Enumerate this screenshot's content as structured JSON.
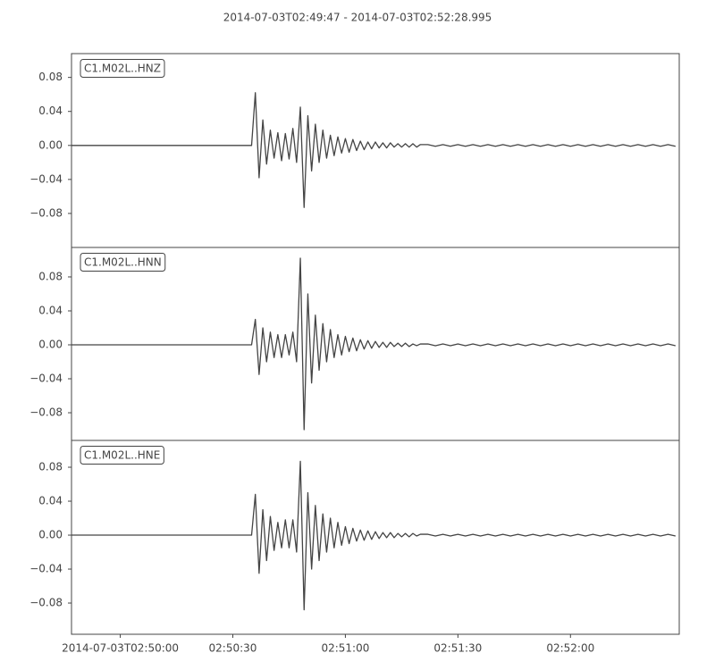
{
  "title": "2014-07-03T02:49:47  -  2014-07-03T02:52:28.995",
  "chart_data": [
    {
      "type": "line",
      "label": "C1.M02L..HNZ",
      "color": "#444444",
      "xlim": [
        "02:49:47",
        "02:52:28.995"
      ],
      "ylim": [
        -0.12,
        0.108
      ],
      "yticks": [
        {
          "value": -0.08,
          "label": "−0.08"
        },
        {
          "value": -0.04,
          "label": "−0.04"
        },
        {
          "value": 0,
          "label": "0.00"
        },
        0.04,
        0.08
      ],
      "x": [
        "02:49:47",
        "02:50:35",
        "02:50:36",
        "02:50:37",
        "02:50:38",
        "02:50:39",
        "02:50:40",
        "02:50:41",
        "02:50:42",
        "02:50:43",
        "02:50:44",
        "02:50:45",
        "02:50:46",
        "02:50:47",
        "02:50:48",
        "02:50:49",
        "02:50:50",
        "02:50:51",
        "02:50:52",
        "02:50:53",
        "02:50:54",
        "02:50:55",
        "02:50:56",
        "02:50:57",
        "02:50:58",
        "02:50:59",
        "02:51:00",
        "02:51:01",
        "02:51:02",
        "02:51:03",
        "02:51:04",
        "02:51:05",
        "02:51:06",
        "02:51:07",
        "02:51:08",
        "02:51:09",
        "02:51:10",
        "02:51:11",
        "02:51:12",
        "02:51:13",
        "02:51:14",
        "02:51:15",
        "02:51:16",
        "02:51:17",
        "02:51:18",
        "02:51:19",
        "02:51:20",
        "02:51:22",
        "02:51:24",
        "02:51:26",
        "02:51:28",
        "02:51:30",
        "02:51:32",
        "02:51:34",
        "02:51:36",
        "02:51:38",
        "02:51:40",
        "02:51:42",
        "02:51:44",
        "02:51:46",
        "02:51:48",
        "02:51:50",
        "02:51:52",
        "02:51:54",
        "02:51:56",
        "02:51:58",
        "02:52:00",
        "02:52:02",
        "02:52:04",
        "02:52:06",
        "02:52:08",
        "02:52:10",
        "02:52:12",
        "02:52:14",
        "02:52:16",
        "02:52:18",
        "02:52:20",
        "02:52:22",
        "02:52:24",
        "02:52:26",
        "02:52:28"
      ],
      "values": [
        0,
        0,
        0.062,
        -0.038,
        0.03,
        -0.022,
        0.018,
        -0.015,
        0.015,
        -0.018,
        0.014,
        -0.016,
        0.02,
        -0.02,
        0.045,
        -0.073,
        0.035,
        -0.03,
        0.025,
        -0.02,
        0.018,
        -0.015,
        0.012,
        -0.012,
        0.01,
        -0.009,
        0.008,
        -0.008,
        0.007,
        -0.006,
        0.005,
        -0.005,
        0.004,
        -0.004,
        0.004,
        -0.003,
        0.003,
        -0.003,
        0.003,
        -0.002,
        0.002,
        -0.002,
        0.002,
        -0.002,
        0.002,
        -0.002,
        0.001,
        0.001,
        -0.001,
        0.001,
        -0.001,
        0.001,
        -0.001,
        0.001,
        -0.001,
        0.001,
        -0.001,
        0.001,
        -0.001,
        0.001,
        -0.001,
        0.001,
        -0.001,
        0.001,
        -0.001,
        0.001,
        -0.001,
        0.001,
        -0.001,
        0.001,
        -0.001,
        0.001,
        -0.001,
        0.001,
        -0.001,
        0.001,
        -0.001,
        0.001,
        -0.001,
        0.001,
        -0.001
      ]
    },
    {
      "type": "line",
      "label": "C1.M02L..HNN",
      "color": "#444444",
      "xlim": [
        "02:49:47",
        "02:52:28.995"
      ],
      "ylim": [
        -0.1126,
        0.1147
      ],
      "yticks": [
        {
          "value": -0.08,
          "label": "−0.08"
        },
        {
          "value": -0.04,
          "label": "−0.04"
        },
        {
          "value": 0,
          "label": "0.00"
        },
        0.04,
        0.08
      ],
      "x": [
        "02:49:47",
        "02:50:35",
        "02:50:36",
        "02:50:37",
        "02:50:38",
        "02:50:39",
        "02:50:40",
        "02:50:41",
        "02:50:42",
        "02:50:43",
        "02:50:44",
        "02:50:45",
        "02:50:46",
        "02:50:47",
        "02:50:48",
        "02:50:49",
        "02:50:50",
        "02:50:51",
        "02:50:52",
        "02:50:53",
        "02:50:54",
        "02:50:55",
        "02:50:56",
        "02:50:57",
        "02:50:58",
        "02:50:59",
        "02:51:00",
        "02:51:01",
        "02:51:02",
        "02:51:03",
        "02:51:04",
        "02:51:05",
        "02:51:06",
        "02:51:07",
        "02:51:08",
        "02:51:09",
        "02:51:10",
        "02:51:11",
        "02:51:12",
        "02:51:13",
        "02:51:14",
        "02:51:15",
        "02:51:16",
        "02:51:17",
        "02:51:18",
        "02:51:19",
        "02:51:20",
        "02:51:22",
        "02:51:24",
        "02:51:26",
        "02:51:28",
        "02:51:30",
        "02:51:32",
        "02:51:34",
        "02:51:36",
        "02:51:38",
        "02:51:40",
        "02:51:42",
        "02:51:44",
        "02:51:46",
        "02:51:48",
        "02:51:50",
        "02:51:52",
        "02:51:54",
        "02:51:56",
        "02:51:58",
        "02:52:00",
        "02:52:02",
        "02:52:04",
        "02:52:06",
        "02:52:08",
        "02:52:10",
        "02:52:12",
        "02:52:14",
        "02:52:16",
        "02:52:18",
        "02:52:20",
        "02:52:22",
        "02:52:24",
        "02:52:26",
        "02:52:28"
      ],
      "values": [
        0,
        0,
        0.03,
        -0.035,
        0.02,
        -0.02,
        0.015,
        -0.015,
        0.012,
        -0.015,
        0.012,
        -0.012,
        0.015,
        -0.02,
        0.102,
        -0.1,
        0.06,
        -0.045,
        0.035,
        -0.03,
        0.025,
        -0.02,
        0.018,
        -0.015,
        0.012,
        -0.012,
        0.01,
        -0.008,
        0.008,
        -0.007,
        0.006,
        -0.005,
        0.005,
        -0.004,
        0.004,
        -0.003,
        0.003,
        -0.003,
        0.003,
        -0.002,
        0.002,
        -0.002,
        0.002,
        -0.002,
        0.001,
        -0.001,
        0.001,
        0.001,
        -0.001,
        0.001,
        -0.001,
        0.001,
        -0.001,
        0.001,
        -0.001,
        0.001,
        -0.001,
        0.001,
        -0.001,
        0.001,
        -0.001,
        0.001,
        -0.001,
        0.001,
        -0.001,
        0.001,
        -0.001,
        0.001,
        -0.001,
        0.001,
        -0.001,
        0.001,
        -0.001,
        0.001,
        -0.001,
        0.001,
        -0.001,
        0.001,
        -0.001,
        0.001,
        -0.001
      ]
    },
    {
      "type": "line",
      "label": "C1.M02L..HNE",
      "color": "#444444",
      "xlim": [
        "02:49:47",
        "02:52:28.995"
      ],
      "ylim": [
        -0.1168,
        0.1116
      ],
      "yticks": [
        {
          "value": -0.08,
          "label": "−0.08"
        },
        {
          "value": -0.04,
          "label": "−0.04"
        },
        {
          "value": 0,
          "label": "0.00"
        },
        0.04,
        0.08
      ],
      "xticks": [
        {
          "value": "02:50:00",
          "label": "2014-07-03T02:50:00"
        },
        "02:50:30",
        "02:51:00",
        "02:51:30",
        "02:52:00"
      ],
      "x": [
        "02:49:47",
        "02:50:35",
        "02:50:36",
        "02:50:37",
        "02:50:38",
        "02:50:39",
        "02:50:40",
        "02:50:41",
        "02:50:42",
        "02:50:43",
        "02:50:44",
        "02:50:45",
        "02:50:46",
        "02:50:47",
        "02:50:48",
        "02:50:49",
        "02:50:50",
        "02:50:51",
        "02:50:52",
        "02:50:53",
        "02:50:54",
        "02:50:55",
        "02:50:56",
        "02:50:57",
        "02:50:58",
        "02:50:59",
        "02:51:00",
        "02:51:01",
        "02:51:02",
        "02:51:03",
        "02:51:04",
        "02:51:05",
        "02:51:06",
        "02:51:07",
        "02:51:08",
        "02:51:09",
        "02:51:10",
        "02:51:11",
        "02:51:12",
        "02:51:13",
        "02:51:14",
        "02:51:15",
        "02:51:16",
        "02:51:17",
        "02:51:18",
        "02:51:19",
        "02:51:20",
        "02:51:22",
        "02:51:24",
        "02:51:26",
        "02:51:28",
        "02:51:30",
        "02:51:32",
        "02:51:34",
        "02:51:36",
        "02:51:38",
        "02:51:40",
        "02:51:42",
        "02:51:44",
        "02:51:46",
        "02:51:48",
        "02:51:50",
        "02:51:52",
        "02:51:54",
        "02:51:56",
        "02:51:58",
        "02:52:00",
        "02:52:02",
        "02:52:04",
        "02:52:06",
        "02:52:08",
        "02:52:10",
        "02:52:12",
        "02:52:14",
        "02:52:16",
        "02:52:18",
        "02:52:20",
        "02:52:22",
        "02:52:24",
        "02:52:26",
        "02:52:28"
      ],
      "values": [
        0,
        0,
        0.048,
        -0.045,
        0.03,
        -0.03,
        0.022,
        -0.018,
        0.015,
        -0.015,
        0.018,
        -0.015,
        0.018,
        -0.02,
        0.087,
        -0.088,
        0.05,
        -0.04,
        0.035,
        -0.03,
        0.025,
        -0.02,
        0.02,
        -0.015,
        0.015,
        -0.012,
        0.01,
        -0.01,
        0.008,
        -0.007,
        0.006,
        -0.006,
        0.005,
        -0.005,
        0.004,
        -0.004,
        0.003,
        -0.003,
        0.003,
        -0.003,
        0.002,
        -0.002,
        0.002,
        -0.002,
        0.002,
        -0.001,
        0.001,
        0.001,
        -0.001,
        0.001,
        -0.001,
        0.001,
        -0.001,
        0.001,
        -0.001,
        0.001,
        -0.001,
        0.001,
        -0.001,
        0.001,
        -0.001,
        0.001,
        -0.001,
        0.001,
        -0.001,
        0.001,
        -0.001,
        0.001,
        -0.001,
        0.001,
        -0.001,
        0.001,
        -0.001,
        0.001,
        -0.001,
        0.001,
        -0.001,
        0.001,
        -0.001,
        0.001,
        -0.001
      ]
    }
  ]
}
